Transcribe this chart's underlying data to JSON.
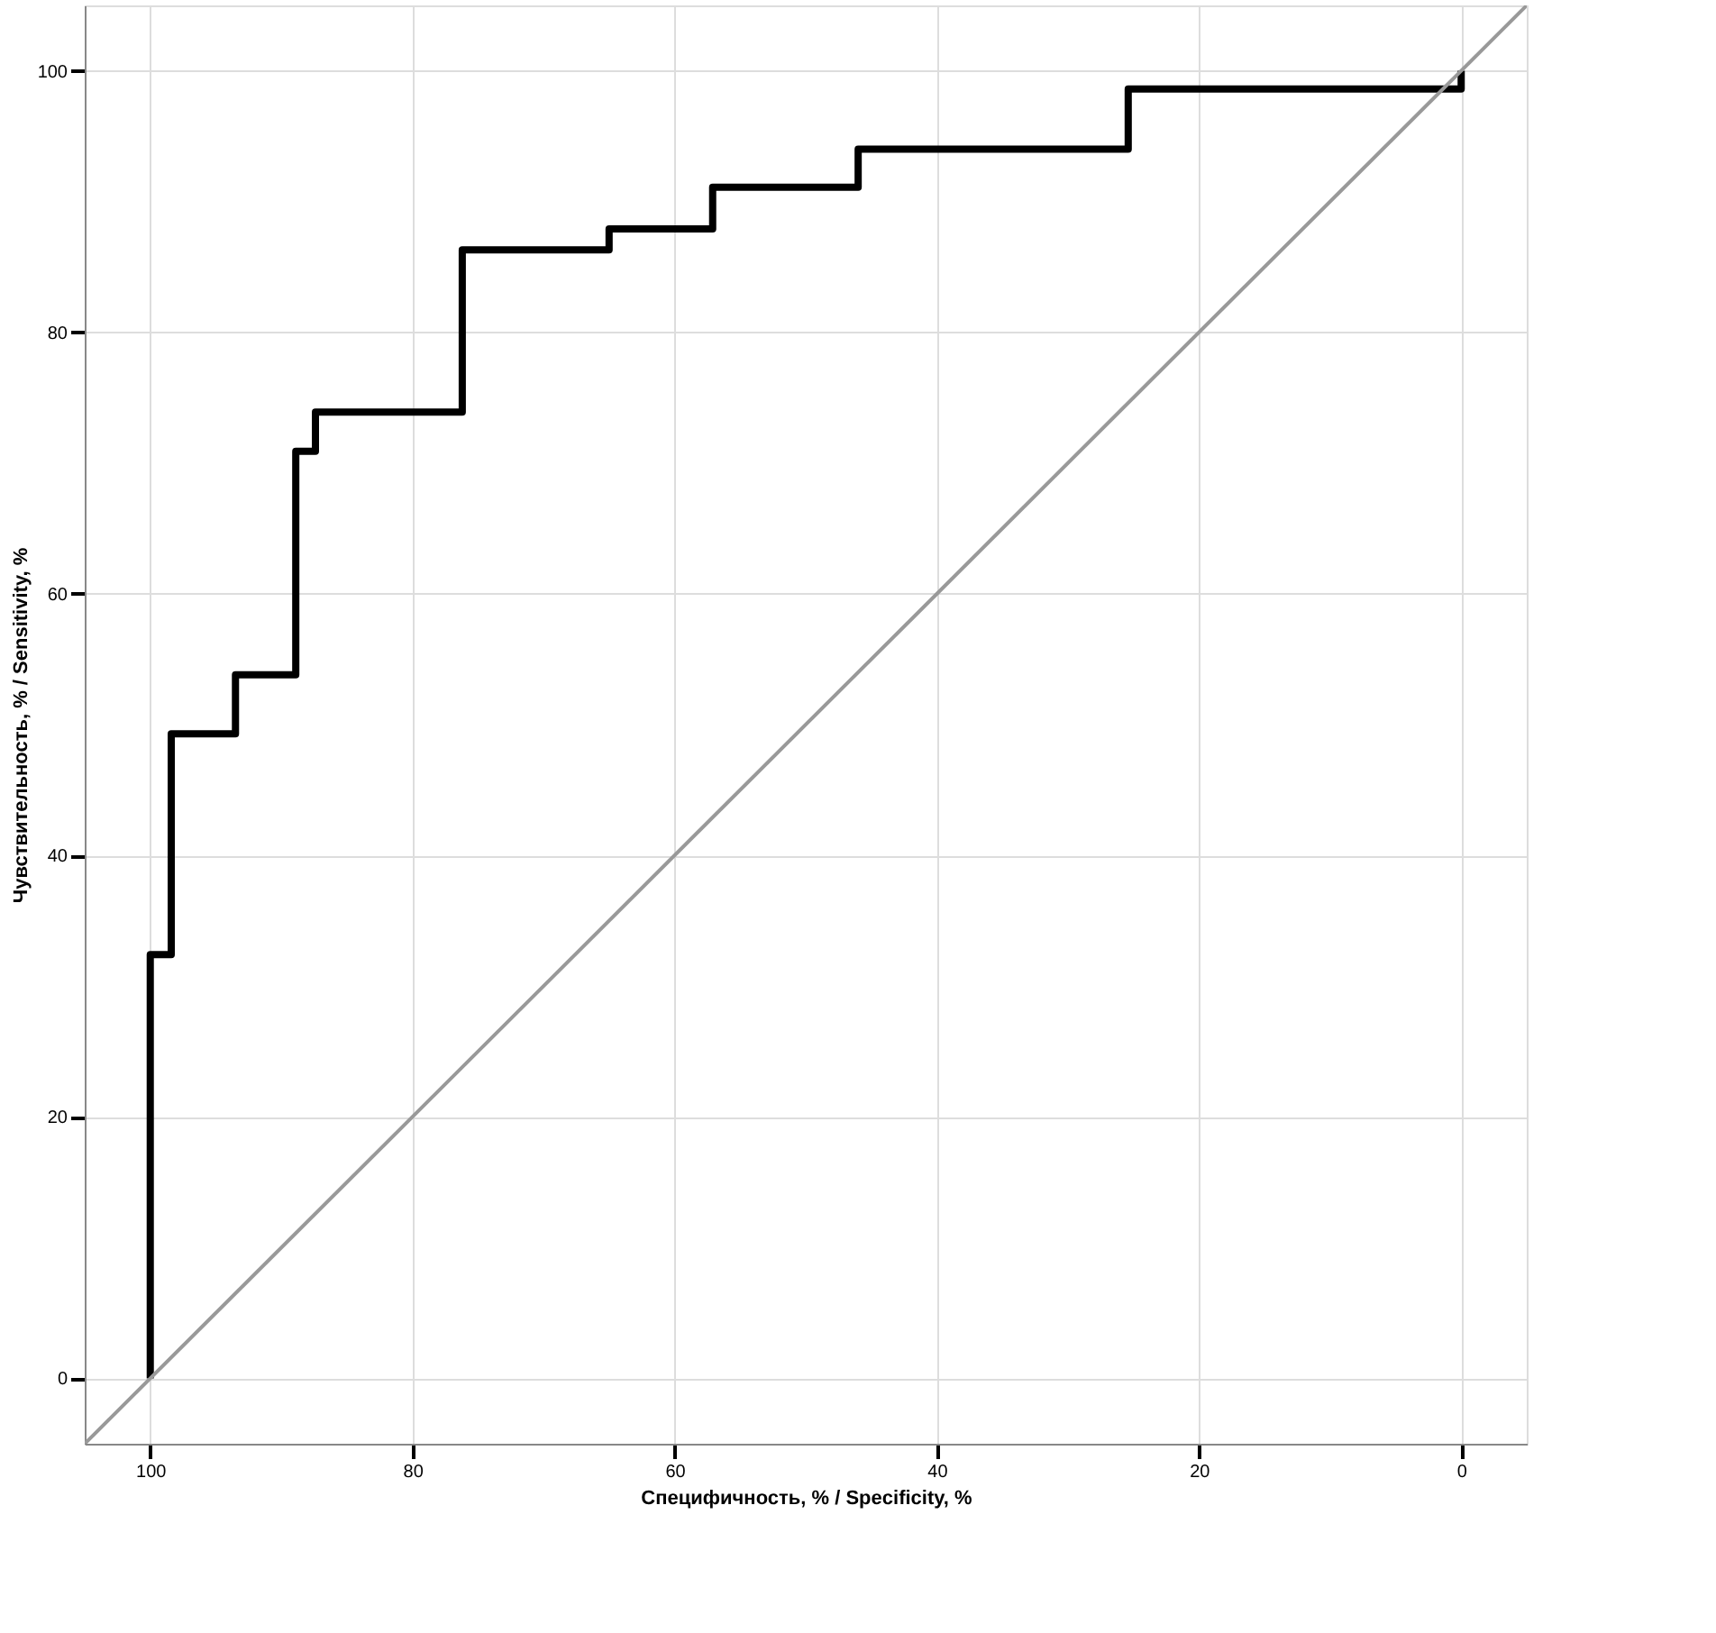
{
  "chart_data": {
    "type": "line",
    "xlabel": "Специфичность, % / Specificity, %",
    "ylabel": "Чувствительность, % / Sensitivity, %",
    "xlim": [
      105,
      -5
    ],
    "ylim": [
      -5,
      105
    ],
    "xticks": [
      100,
      80,
      60,
      40,
      20,
      0
    ],
    "yticks": [
      0,
      20,
      40,
      60,
      80,
      100
    ],
    "grid": true,
    "marker": "none",
    "line_style": "solid",
    "series": [
      {
        "color": "#000000",
        "x": [
          100,
          100,
          98.4,
          98.4,
          93.5,
          93.5,
          88.9,
          88.9,
          87.4,
          87.4,
          76.2,
          76.2,
          65,
          65,
          57.1,
          57.1,
          46,
          46,
          25.4,
          25.4,
          0,
          0
        ],
        "values": [
          0,
          32.4,
          32.4,
          49.3,
          49.3,
          53.8,
          53.8,
          70.9,
          70.9,
          73.9,
          73.9,
          86.3,
          86.3,
          87.9,
          87.9,
          91.1,
          91.1,
          94,
          94,
          98.6,
          98.6,
          100
        ]
      },
      {
        "color": "#999999",
        "x": [
          105,
          -5
        ],
        "values": [
          -5,
          105
        ]
      }
    ]
  }
}
